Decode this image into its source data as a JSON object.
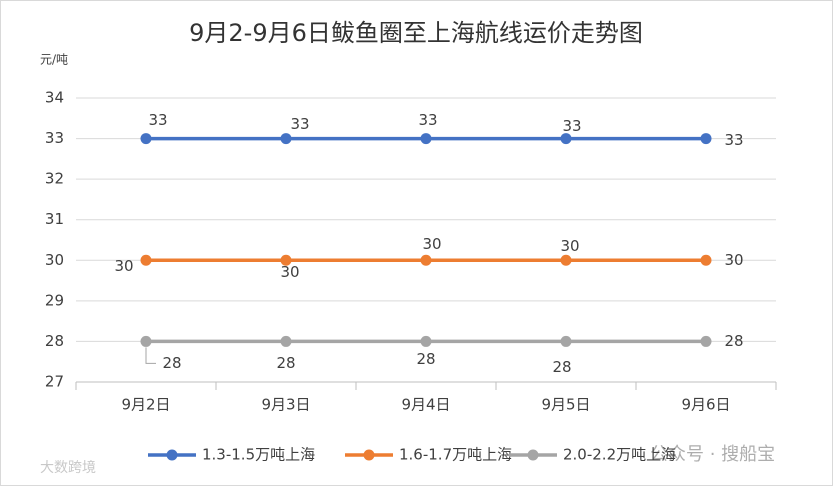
{
  "chart_data": {
    "type": "line",
    "title": "9月2-9月6日鲅鱼圈至上海航线运价走势图",
    "y_label": "元/吨",
    "categories": [
      "9月2日",
      "9月3日",
      "9月4日",
      "9月5日",
      "9月6日"
    ],
    "series": [
      {
        "name": "1.3-1.5万吨上海",
        "color": "#4472c4",
        "values": [
          33,
          33,
          33,
          33,
          33
        ]
      },
      {
        "name": "1.6-1.7万吨上海",
        "color": "#ed7d31",
        "values": [
          30,
          30,
          30,
          30,
          30
        ]
      },
      {
        "name": "2.0-2.2万吨上海",
        "color": "#a5a5a5",
        "values": [
          28,
          28,
          28,
          28,
          28
        ]
      }
    ],
    "ylim": [
      27,
      34
    ],
    "yticks": [
      27,
      28,
      29,
      30,
      31,
      32,
      33,
      34
    ],
    "grid": true,
    "legend": "bottom",
    "watermarks": [
      "公众号 · 搜船宝",
      "大数跨境"
    ]
  }
}
